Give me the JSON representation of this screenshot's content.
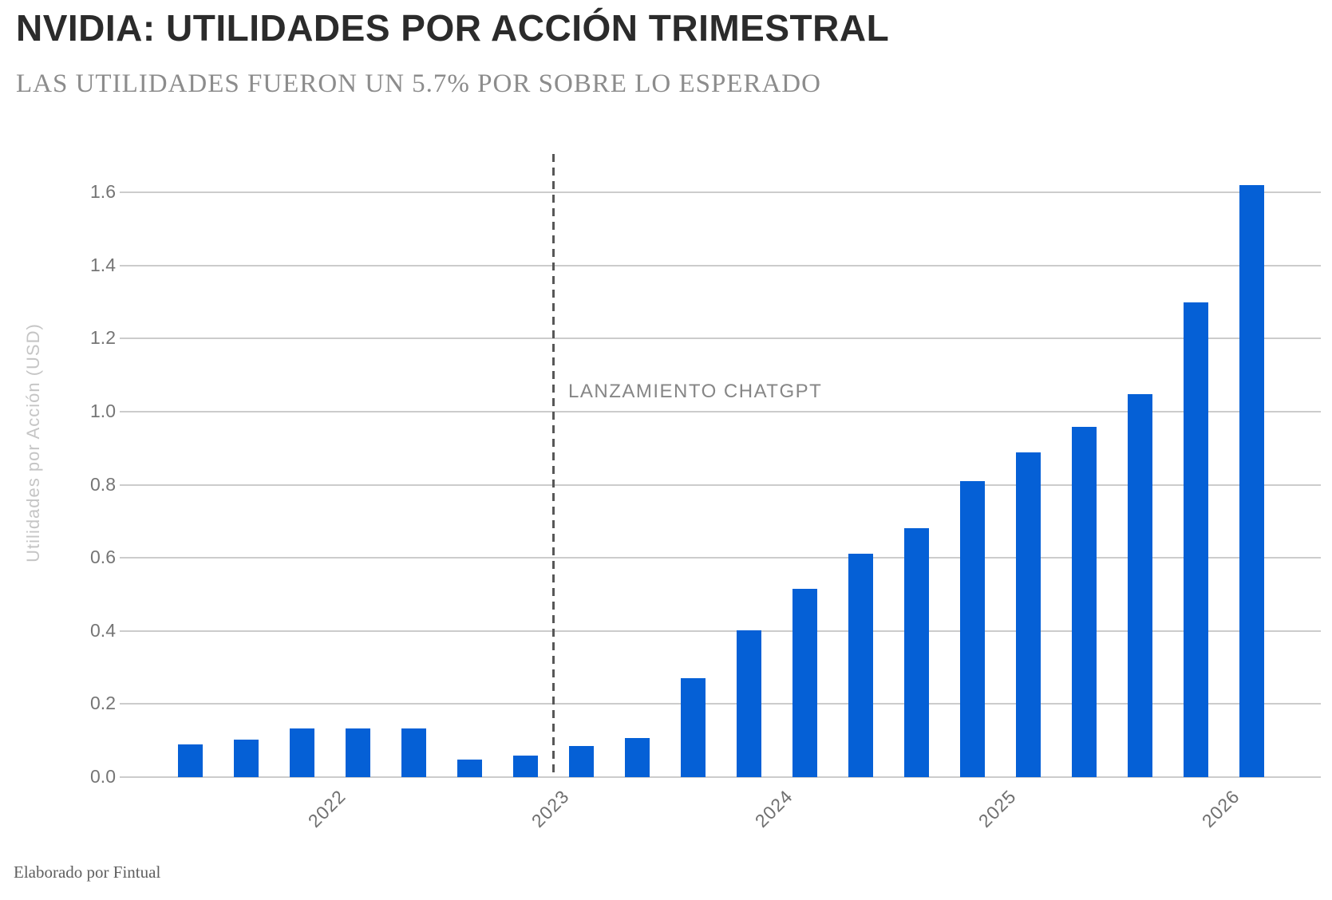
{
  "chart_data": {
    "type": "bar",
    "title": "NVIDIA: UTILIDADES POR ACCIÓN TRIMESTRAL",
    "subtitle": "LAS UTILIDADES FUERON UN 5.7% POR SOBRE LO ESPERADO",
    "ylabel": "Utilidades por Acción (USD)",
    "footer": "Elaborado por Fintual",
    "values": [
      0.09,
      0.103,
      0.134,
      0.133,
      0.134,
      0.048,
      0.058,
      0.086,
      0.108,
      0.27,
      0.402,
      0.516,
      0.612,
      0.681,
      0.81,
      0.889,
      0.958,
      1.049,
      1.299,
      1.621
    ],
    "bars_per_year": 4,
    "x_tick_labels": [
      "2022",
      "2023",
      "2024",
      "2025",
      "2026"
    ],
    "x_tick_bar_boundaries": [
      2.5,
      6.5,
      10.5,
      14.5,
      18.5
    ],
    "y_ticks": [
      "0.0",
      "0.2",
      "0.4",
      "0.6",
      "0.8",
      "1.0",
      "1.2",
      "1.4",
      "1.6"
    ],
    "ylim": [
      0,
      1.71
    ],
    "grid": "horizontal",
    "legend": "none",
    "annotation": {
      "text": "LANZAMIENTO CHATGPT",
      "line_style": "dashed-vertical",
      "x_bar_boundary": 6.5
    },
    "colors": {
      "bar": "#0560D6",
      "gridline": "#cccccc",
      "dashed_line": "#575757",
      "annotation_text": "#868686",
      "title": "#2b2b2b",
      "subtitle": "#8c8c8c",
      "axis_text": "#6f6f6f"
    }
  }
}
